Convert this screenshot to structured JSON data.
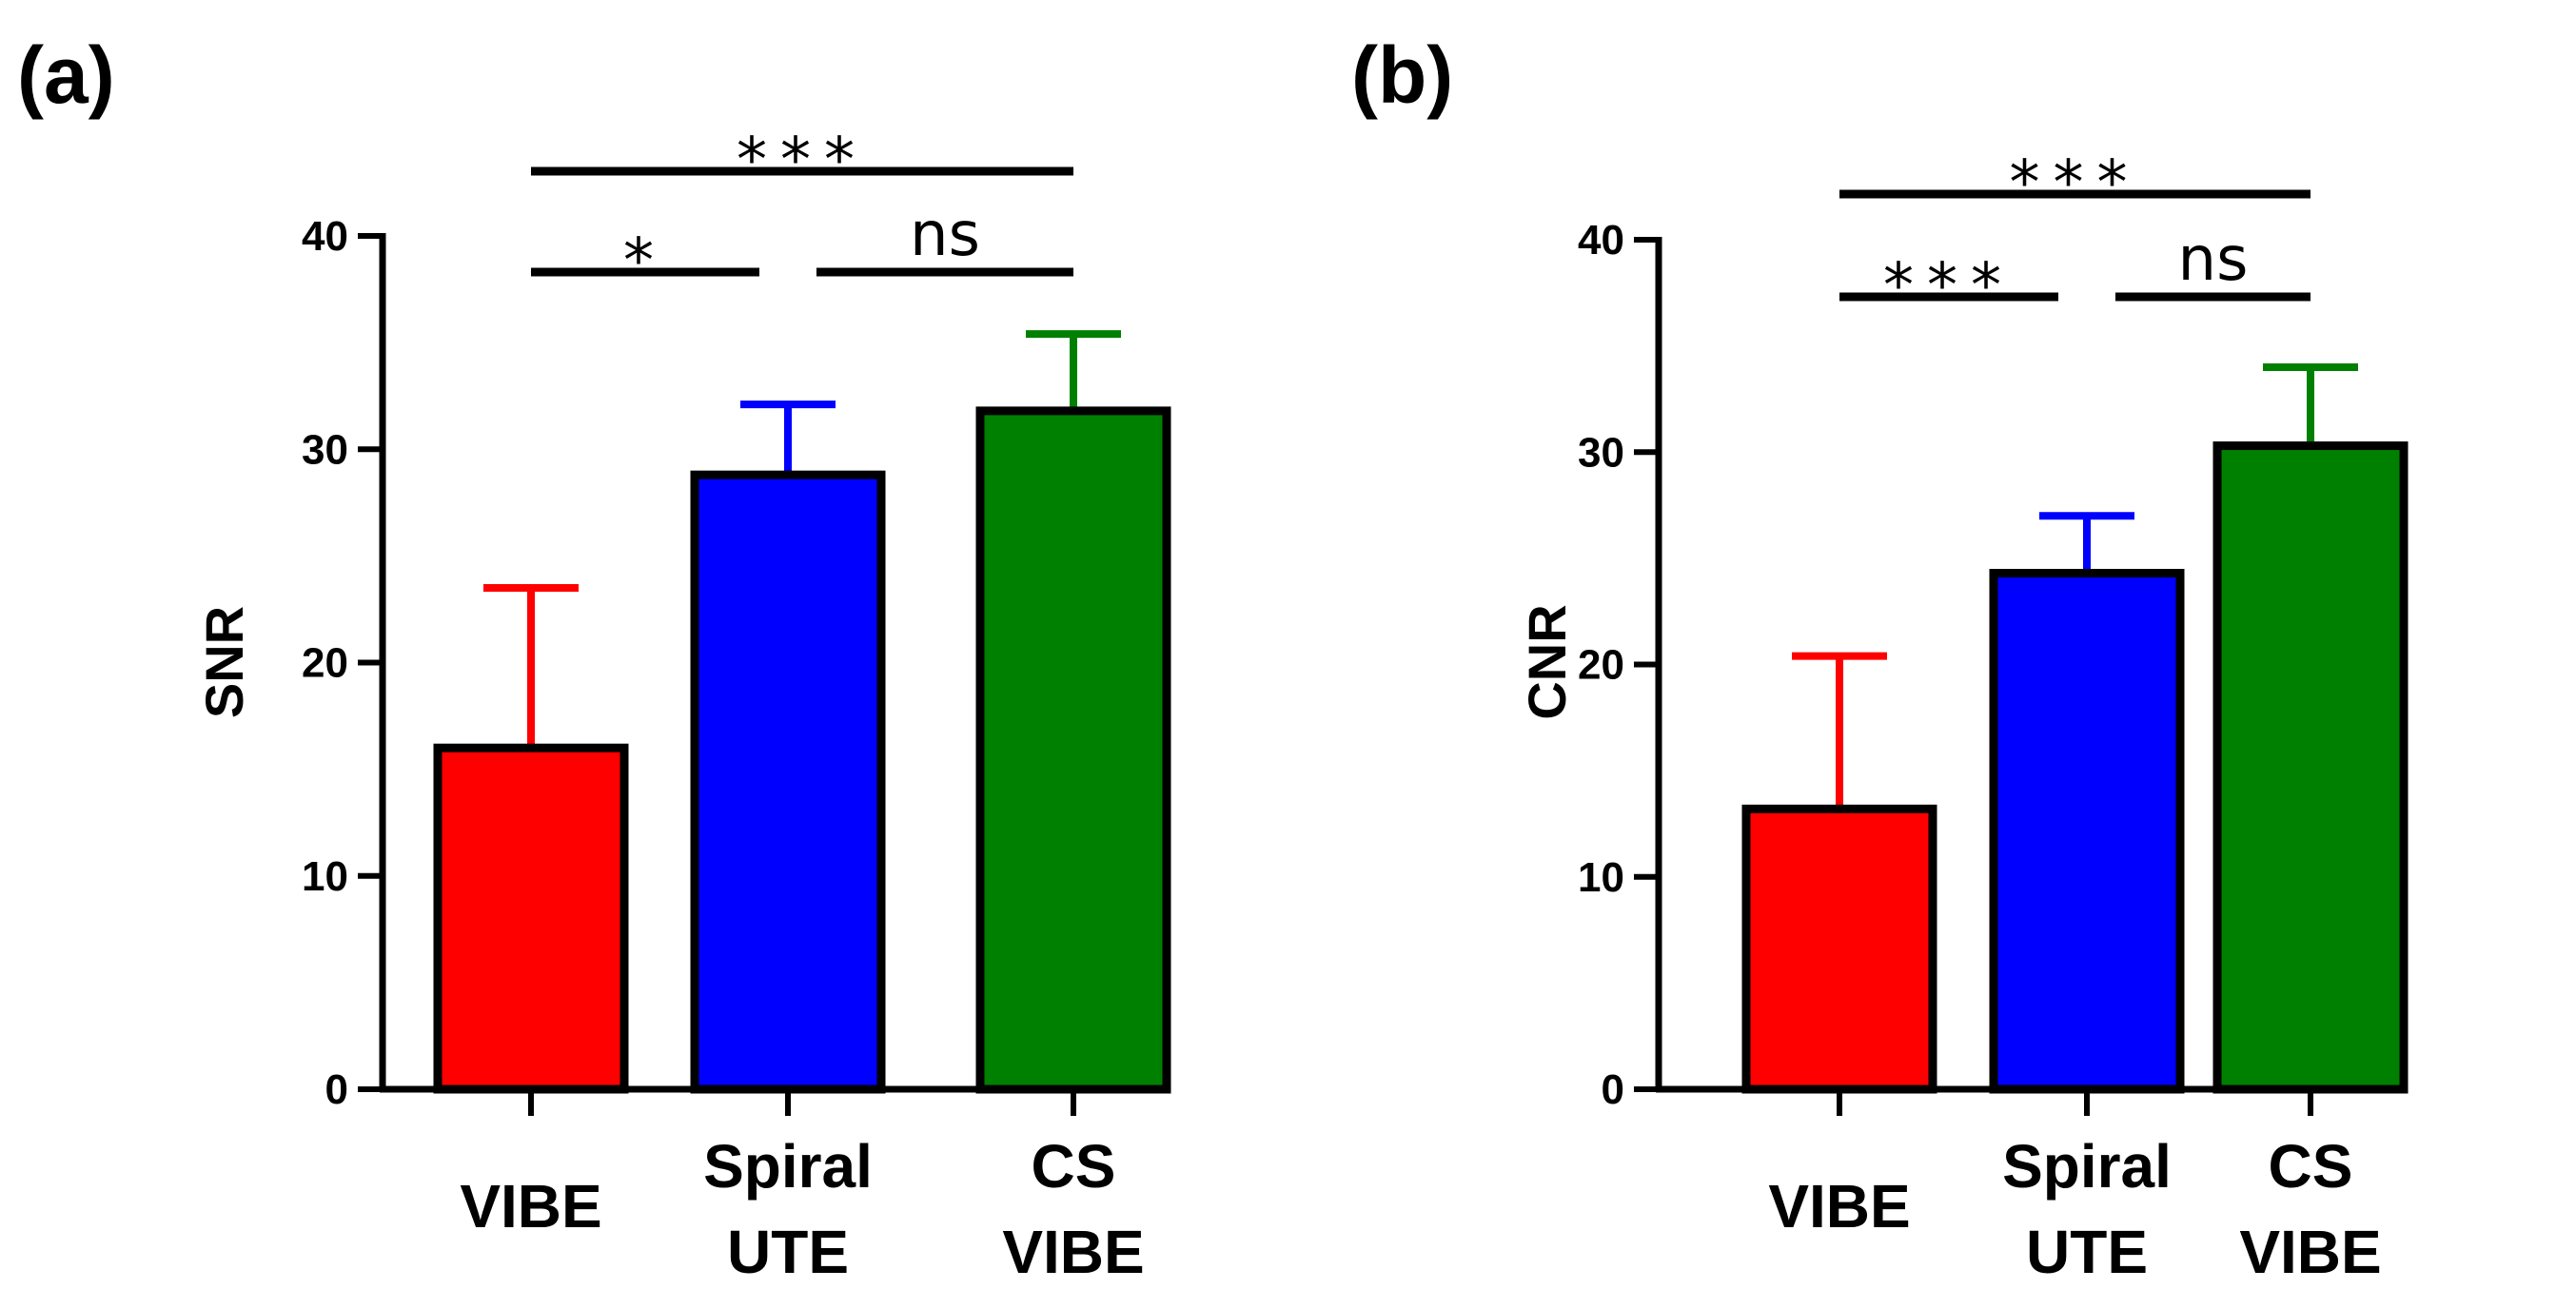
{
  "chart_data": [
    {
      "panel": "(a)",
      "type": "bar",
      "categories": [
        [
          "VIBE"
        ],
        [
          "Spiral",
          "UTE"
        ],
        [
          "CS",
          "VIBE"
        ]
      ],
      "values": [
        16,
        28.8,
        31.8
      ],
      "errors": [
        7.5,
        3.3,
        3.6
      ],
      "colors": [
        "#ff0000",
        "#0000ff",
        "#008000"
      ],
      "ylabel": "SNR",
      "ylim": [
        0,
        40
      ],
      "yticks": [
        0,
        10,
        20,
        30,
        40
      ],
      "significance": [
        {
          "from": 0,
          "to": 2,
          "label": "***",
          "level": 1
        },
        {
          "from": 0,
          "to": 1,
          "label": "*",
          "level": 0
        },
        {
          "from": 1,
          "to": 2,
          "label": "ns",
          "level": 0
        }
      ]
    },
    {
      "panel": "(b)",
      "type": "bar",
      "categories": [
        [
          "VIBE"
        ],
        [
          "Spiral",
          "UTE"
        ],
        [
          "CS",
          "VIBE"
        ]
      ],
      "values": [
        13.2,
        24.3,
        30.3
      ],
      "errors": [
        7.2,
        2.7,
        3.7
      ],
      "colors": [
        "#ff0000",
        "#0000ff",
        "#008000"
      ],
      "ylabel": "CNR",
      "ylim": [
        0,
        40
      ],
      "yticks": [
        0,
        10,
        20,
        30,
        40
      ],
      "significance": [
        {
          "from": 0,
          "to": 2,
          "label": "***",
          "level": 1
        },
        {
          "from": 0,
          "to": 1,
          "label": "***",
          "level": 0
        },
        {
          "from": 1,
          "to": 2,
          "label": "ns",
          "level": 0
        }
      ]
    }
  ]
}
